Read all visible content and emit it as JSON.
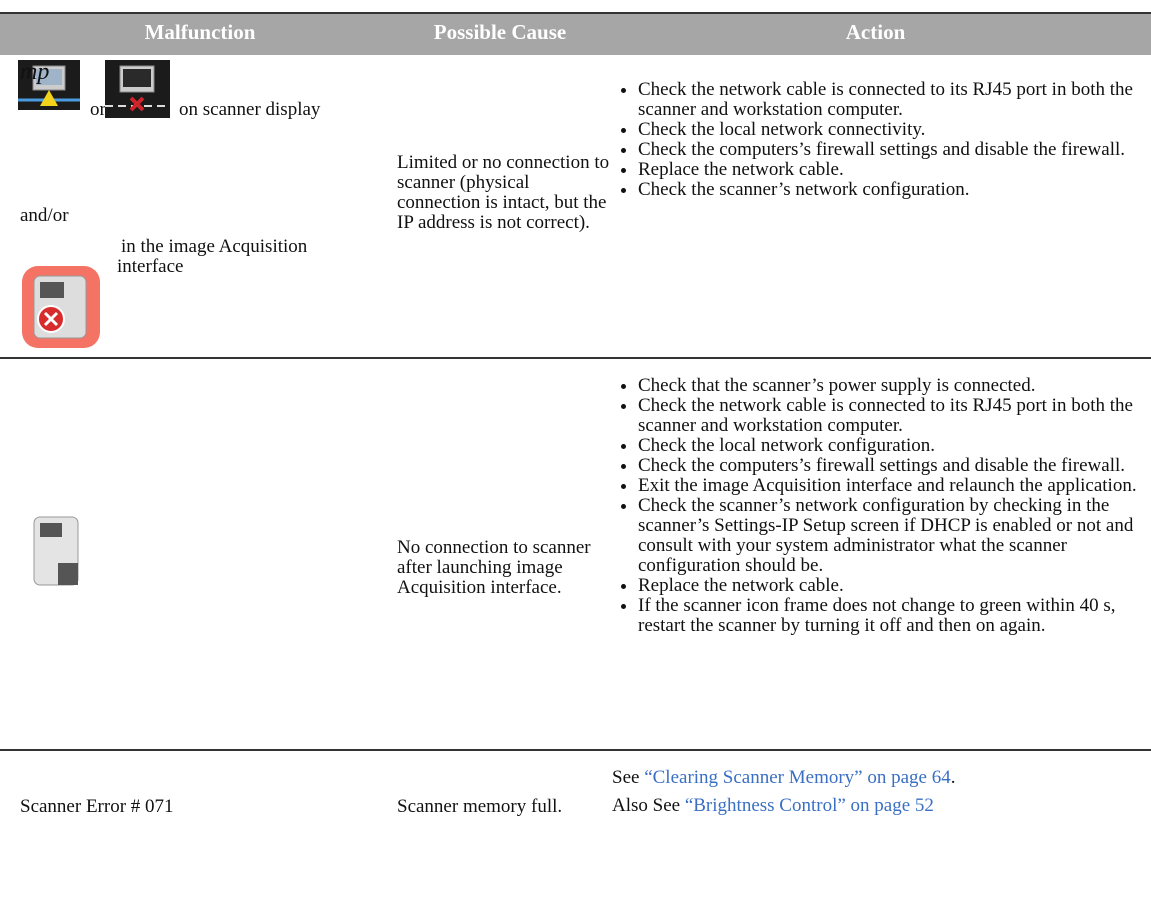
{
  "table": {
    "headers": [
      "Malfunction",
      "Possible Cause",
      "Action"
    ],
    "rows": [
      {
        "malfunction": {
          "icon_text": "mp",
          "or": "or",
          "display": "on scanner display",
          "and_or": "and/or",
          "interface": "in the image Acquisition interface"
        },
        "cause": "Limited or no connection to scanner (physical connection is intact, but the IP address is not correct).",
        "actions": [
          "Check the network cable is connected to its RJ45 port in both the scanner and workstation computer.",
          "Check the local network connectivity.",
          "Check the computers’s firewall settings and disable the firewall.",
          "Replace the network cable.",
          "Check the scanner’s network configuration."
        ]
      },
      {
        "cause": "No connection to scanner after launching image Acquisition interface.",
        "actions": [
          "Check that the scanner’s power supply is connected.",
          "Check the network cable is connected to its RJ45 port in both the scanner and workstation computer.",
          "Check the local network configuration.",
          "Check the computers’s firewall settings and disable the firewall.",
          "Exit the image Acquisition interface and relaunch the application.",
          "Check the scanner’s network configuration by checking in the scanner’s Settings-IP Setup screen if DHCP is enabled or not and consult with your system administrator what the scanner configuration should be.",
          "Replace the network cable.",
          "If the scanner icon frame does not change to green within 40 s, restart the scanner by turning it off and then on again."
        ]
      },
      {
        "malfunction": "Scanner Error # 071",
        "cause": "Scanner memory full.",
        "see": [
          {
            "prefix": "See",
            "link": "“Clearing Scanner Memory” on page 64",
            "suffix": "."
          },
          {
            "prefix": "Also See",
            "link": "“Brightness Control” on page 52"
          }
        ]
      }
    ]
  }
}
